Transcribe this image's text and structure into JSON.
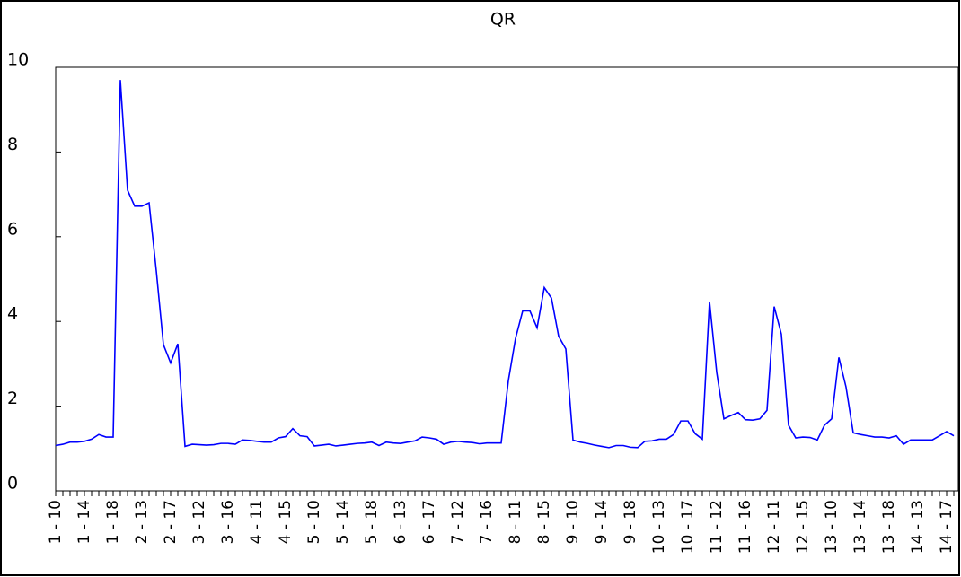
{
  "chart_data": {
    "type": "line",
    "title": "QR",
    "categories": [
      "1 - 10",
      null,
      null,
      null,
      "1 - 14",
      null,
      null,
      null,
      "1 - 18",
      null,
      null,
      null,
      "2 - 13",
      null,
      null,
      null,
      "2 - 17",
      null,
      null,
      null,
      "3 - 12",
      null,
      null,
      null,
      "3 - 16",
      null,
      null,
      null,
      "4 - 11",
      null,
      null,
      null,
      "4 - 15",
      null,
      null,
      null,
      "5 - 10",
      null,
      null,
      null,
      "5 - 14",
      null,
      null,
      null,
      "5 - 18",
      null,
      null,
      null,
      "6 - 13",
      null,
      null,
      null,
      "6 - 17",
      null,
      null,
      null,
      "7 - 12",
      null,
      null,
      null,
      "7 - 16",
      null,
      null,
      null,
      "8 - 11",
      null,
      null,
      null,
      "8 - 15",
      null,
      null,
      null,
      "9 - 10",
      null,
      null,
      null,
      "9 - 14",
      null,
      null,
      null,
      "9 - 18",
      null,
      null,
      null,
      "10 - 13",
      null,
      null,
      null,
      "10 - 17",
      null,
      null,
      null,
      "11 - 12",
      null,
      null,
      null,
      "11 - 16",
      null,
      null,
      null,
      "12 - 11",
      null,
      null,
      null,
      "12 - 15",
      null,
      null,
      null,
      "13 - 10",
      null,
      null,
      null,
      "13 - 14",
      null,
      null,
      null,
      "13 - 18",
      null,
      null,
      null,
      "14 - 13",
      null,
      null,
      null,
      "14 - 17",
      null
    ],
    "values": [
      1.07,
      1.1,
      1.15,
      1.15,
      1.17,
      1.22,
      1.33,
      1.27,
      1.27,
      9.7,
      7.1,
      6.72,
      6.72,
      6.8,
      5.2,
      3.45,
      3.02,
      3.47,
      1.05,
      1.1,
      1.09,
      1.08,
      1.09,
      1.12,
      1.12,
      1.1,
      1.2,
      1.19,
      1.17,
      1.15,
      1.15,
      1.25,
      1.28,
      1.47,
      1.3,
      1.28,
      1.06,
      1.08,
      1.1,
      1.06,
      1.08,
      1.1,
      1.12,
      1.13,
      1.15,
      1.07,
      1.15,
      1.13,
      1.12,
      1.15,
      1.18,
      1.27,
      1.25,
      1.22,
      1.1,
      1.15,
      1.17,
      1.15,
      1.14,
      1.11,
      1.13,
      1.13,
      1.13,
      2.6,
      3.6,
      4.25,
      4.25,
      3.85,
      4.8,
      4.55,
      3.65,
      3.35,
      1.2,
      1.15,
      1.12,
      1.08,
      1.05,
      1.02,
      1.07,
      1.07,
      1.03,
      1.02,
      1.17,
      1.18,
      1.22,
      1.22,
      1.33,
      1.65,
      1.65,
      1.35,
      1.22,
      4.47,
      2.8,
      1.7,
      1.78,
      1.85,
      1.68,
      1.67,
      1.7,
      1.9,
      4.35,
      3.7,
      1.55,
      1.25,
      1.27,
      1.26,
      1.2,
      1.55,
      1.7,
      3.15,
      2.45,
      1.37,
      1.33,
      1.3,
      1.27,
      1.27,
      1.25,
      1.3,
      1.1,
      1.2,
      1.2,
      1.2,
      1.2,
      1.3,
      1.4,
      1.3
    ],
    "color": "#0000ff",
    "ylim": [
      0,
      10
    ],
    "yticks": [
      0,
      2,
      4,
      6,
      8,
      10
    ]
  }
}
